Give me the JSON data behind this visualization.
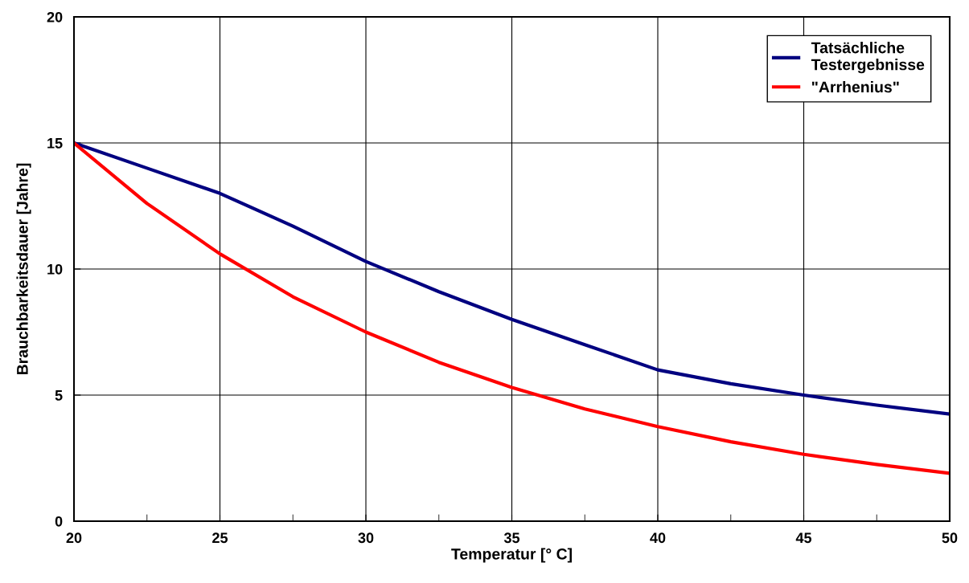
{
  "chart_data": {
    "type": "line",
    "xlabel": "Temperatur [° C]",
    "ylabel": "Brauchbarkeitsdauer [Jahre]",
    "x": [
      20,
      22.5,
      25,
      27.5,
      30,
      32.5,
      35,
      37.5,
      40,
      42.5,
      45,
      47.5,
      50
    ],
    "series": [
      {
        "name": "Tatsächliche\nTestergebnisse",
        "color": "#000080",
        "values": [
          15,
          14.0,
          13.0,
          11.7,
          10.3,
          9.1,
          8.0,
          7.0,
          6.0,
          5.45,
          5.0,
          4.6,
          4.25
        ]
      },
      {
        "name": "\"Arrhenius\"",
        "color": "#ff0000",
        "values": [
          15,
          12.6,
          10.6,
          8.9,
          7.5,
          6.3,
          5.3,
          4.45,
          3.75,
          3.15,
          2.65,
          2.25,
          1.9
        ]
      }
    ],
    "xlim": [
      20,
      50
    ],
    "ylim": [
      0,
      20
    ],
    "xticks": [
      20,
      {
        "value": 22.5,
        "label": null
      },
      25,
      {
        "value": 27.5,
        "label": null
      },
      30,
      {
        "value": 32.5,
        "label": null
      },
      35,
      {
        "value": 37.5,
        "label": null
      },
      40,
      {
        "value": 42.5,
        "label": null
      },
      45,
      {
        "value": 47.5,
        "label": null
      },
      50
    ],
    "yticks": [
      0,
      5,
      10,
      15,
      20
    ],
    "grid": true,
    "legend": "top right",
    "marker": "none",
    "line_style": "solid"
  }
}
